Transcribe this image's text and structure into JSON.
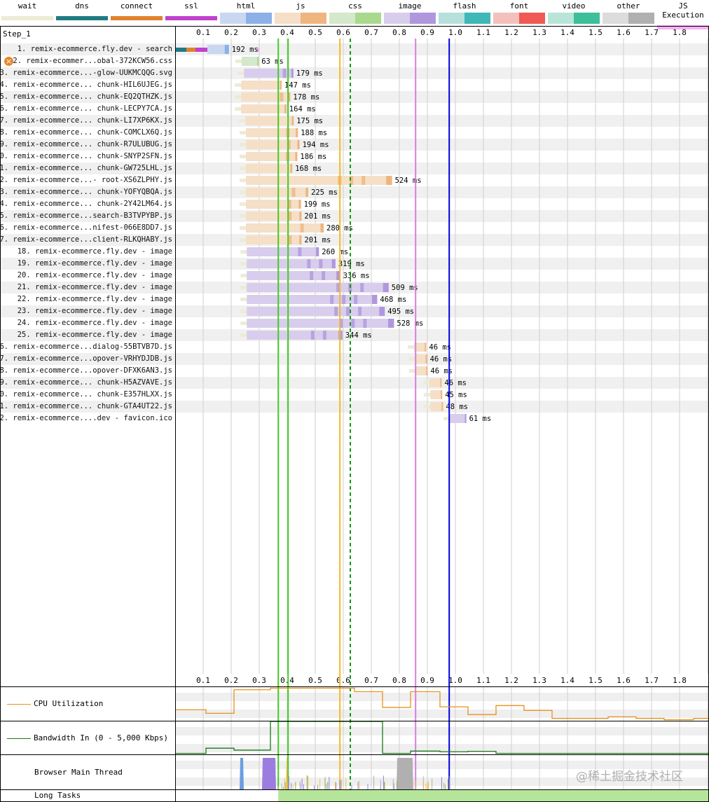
{
  "legend": [
    {
      "name": "wait",
      "colors": [
        "#ececd6"
      ]
    },
    {
      "name": "dns",
      "colors": [
        "#1f7c83"
      ]
    },
    {
      "name": "connect",
      "colors": [
        "#e0822e"
      ]
    },
    {
      "name": "ssl",
      "colors": [
        "#c141cd"
      ]
    },
    {
      "name": "html",
      "colors": [
        "#c9d8f0",
        "#8cb1e8"
      ]
    },
    {
      "name": "js",
      "colors": [
        "#f5dfc7",
        "#efb57e"
      ]
    },
    {
      "name": "css",
      "colors": [
        "#d4e8cc",
        "#a8d98d"
      ]
    },
    {
      "name": "image",
      "colors": [
        "#d8cdec",
        "#b097dd"
      ]
    },
    {
      "name": "flash",
      "colors": [
        "#b5e0dc",
        "#3fb8b7"
      ]
    },
    {
      "name": "font",
      "colors": [
        "#f3c0bd",
        "#ef5a53"
      ]
    },
    {
      "name": "video",
      "colors": [
        "#b9e5d8",
        "#3dbf9a"
      ]
    },
    {
      "name": "other",
      "colors": [
        "#dcdcdc",
        "#b0b0b0"
      ]
    },
    {
      "name": "JS Execution",
      "colors": [
        "#f8b0f4"
      ]
    }
  ],
  "step_label": "Step_1",
  "axis": {
    "ticks": [
      "0.1",
      "0.2",
      "0.3",
      "0.4",
      "0.5",
      "0.6",
      "0.7",
      "0.8",
      "0.9",
      "1.0",
      "1.1",
      "1.2",
      "1.3",
      "1.4",
      "1.5",
      "1.6",
      "1.7",
      "1.8"
    ],
    "max_seconds": 1.9
  },
  "markers": [
    {
      "t": 0.368,
      "color": "#44cc22",
      "style": "solid"
    },
    {
      "t": 0.403,
      "color": "#44cc22",
      "style": "solid"
    },
    {
      "t": 0.588,
      "color": "#f5b821",
      "style": "solid"
    },
    {
      "t": 0.625,
      "color": "#119911",
      "style": "dashed"
    },
    {
      "t": 0.858,
      "color": "#d57fdc",
      "style": "solid"
    },
    {
      "t": 0.978,
      "color": "#0000dd",
      "style": "solid"
    }
  ],
  "rows": [
    {
      "num": "1.",
      "label": "remix-ecommerce.fly.dev - search",
      "type": "html",
      "start": 0.0,
      "duration_ms": 192,
      "time": "192 ms"
    },
    {
      "num": "2.",
      "label": "remix-ecommer...obal-372KCW56.css",
      "type": "css",
      "start": 0.235,
      "duration_ms": 63,
      "time": "63 ms",
      "error": true
    },
    {
      "num": "3.",
      "label": "remix-ecommerce...-glow-UUKMCQQG.svg",
      "type": "image",
      "start": 0.243,
      "duration_ms": 179,
      "time": "179 ms"
    },
    {
      "num": "4.",
      "label": "remix-ecommerce... chunk-HIL6UJEG.js",
      "type": "js",
      "start": 0.233,
      "duration_ms": 147,
      "time": "147 ms"
    },
    {
      "num": "5.",
      "label": "remix-ecommerce... chunk-EQ2QTHZK.js",
      "type": "js",
      "start": 0.233,
      "duration_ms": 178,
      "time": "178 ms"
    },
    {
      "num": "6.",
      "label": "remix-ecommerce... chunk-LECPY7CA.js",
      "type": "js",
      "start": 0.233,
      "duration_ms": 164,
      "time": "164 ms"
    },
    {
      "num": "7.",
      "label": "remix-ecommerce... chunk-LI7XP6KX.js",
      "type": "js",
      "start": 0.248,
      "duration_ms": 175,
      "time": "175 ms"
    },
    {
      "num": "8.",
      "label": "remix-ecommerce... chunk-COMCLX6Q.js",
      "type": "js",
      "start": 0.25,
      "duration_ms": 188,
      "time": "188 ms"
    },
    {
      "num": "9.",
      "label": "remix-ecommerce... chunk-R7ULUBUG.js",
      "type": "js",
      "start": 0.25,
      "duration_ms": 194,
      "time": "194 ms"
    },
    {
      "num": "10.",
      "label": "remix-ecommerce... chunk-SNYP2SFN.js",
      "type": "js",
      "start": 0.25,
      "duration_ms": 186,
      "time": "186 ms"
    },
    {
      "num": "11.",
      "label": "remix-ecommerce... chunk-GW725LHL.js",
      "type": "js",
      "start": 0.25,
      "duration_ms": 168,
      "time": "168 ms"
    },
    {
      "num": "12.",
      "label": "remix-ecommerce...- root-XS6ZLPHY.js",
      "type": "js",
      "start": 0.25,
      "duration_ms": 524,
      "time": "524 ms"
    },
    {
      "num": "13.",
      "label": "remix-ecommerce... chunk-YOFYQBQA.js",
      "type": "js",
      "start": 0.25,
      "duration_ms": 225,
      "time": "225 ms"
    },
    {
      "num": "14.",
      "label": "remix-ecommerce... chunk-2Y42LM64.js",
      "type": "js",
      "start": 0.25,
      "duration_ms": 199,
      "time": "199 ms"
    },
    {
      "num": "15.",
      "label": "remix-ecommerce...search-B3TVPYBP.js",
      "type": "js",
      "start": 0.25,
      "duration_ms": 201,
      "time": "201 ms"
    },
    {
      "num": "16.",
      "label": "remix-ecommerce...nifest-066E8DD7.js",
      "type": "js",
      "start": 0.25,
      "duration_ms": 280,
      "time": "280 ms"
    },
    {
      "num": "17.",
      "label": "remix-ecommerce...client-RLKQHABY.js",
      "type": "js",
      "start": 0.25,
      "duration_ms": 201,
      "time": "201 ms"
    },
    {
      "num": "18.",
      "label": "remix-ecommerce.fly.dev - image",
      "type": "image",
      "start": 0.253,
      "duration_ms": 260,
      "time": "260 ms"
    },
    {
      "num": "19.",
      "label": "remix-ecommerce.fly.dev - image",
      "type": "image",
      "start": 0.253,
      "duration_ms": 319,
      "time": "319 ms"
    },
    {
      "num": "20.",
      "label": "remix-ecommerce.fly.dev - image",
      "type": "image",
      "start": 0.253,
      "duration_ms": 336,
      "time": "336 ms"
    },
    {
      "num": "21.",
      "label": "remix-ecommerce.fly.dev - image",
      "type": "image",
      "start": 0.253,
      "duration_ms": 509,
      "time": "509 ms"
    },
    {
      "num": "22.",
      "label": "remix-ecommerce.fly.dev - image",
      "type": "image",
      "start": 0.253,
      "duration_ms": 468,
      "time": "468 ms"
    },
    {
      "num": "23.",
      "label": "remix-ecommerce.fly.dev - image",
      "type": "image",
      "start": 0.253,
      "duration_ms": 495,
      "time": "495 ms"
    },
    {
      "num": "24.",
      "label": "remix-ecommerce.fly.dev - image",
      "type": "image",
      "start": 0.253,
      "duration_ms": 528,
      "time": "528 ms"
    },
    {
      "num": "25.",
      "label": "remix-ecommerce.fly.dev - image",
      "type": "image",
      "start": 0.253,
      "duration_ms": 344,
      "time": "344 ms"
    },
    {
      "num": "26.",
      "label": "remix-ecommerce...dialog-55BTVB7D.js",
      "type": "js",
      "start": 0.85,
      "duration_ms": 46,
      "time": "46 ms"
    },
    {
      "num": "27.",
      "label": "remix-ecommerce...opover-VRHYDJDB.js",
      "type": "js",
      "start": 0.853,
      "duration_ms": 46,
      "time": "46 ms"
    },
    {
      "num": "28.",
      "label": "remix-ecommerce...opover-DFXK6AN3.js",
      "type": "js",
      "start": 0.855,
      "duration_ms": 46,
      "time": "46 ms"
    },
    {
      "num": "29.",
      "label": "remix-ecommerce... chunk-H5AZVAVE.js",
      "type": "js",
      "start": 0.905,
      "duration_ms": 46,
      "time": "46 ms"
    },
    {
      "num": "30.",
      "label": "remix-ecommerce... chunk-E357HLXX.js",
      "type": "js",
      "start": 0.908,
      "duration_ms": 45,
      "time": "45 ms"
    },
    {
      "num": "31.",
      "label": "remix-ecommerce... chunk-GTA4UT22.js",
      "type": "js",
      "start": 0.908,
      "duration_ms": 48,
      "time": "48 ms"
    },
    {
      "num": "32.",
      "label": "remix-ecommerce....dev - favicon.ico",
      "type": "other_image",
      "start": 0.978,
      "duration_ms": 61,
      "time": "61 ms"
    }
  ],
  "panels": {
    "cpu": {
      "label": "CPU Utilization",
      "color": "#e8921e",
      "steps": [
        [
          0,
          32
        ],
        [
          0.11,
          21
        ],
        [
          0.21,
          94
        ],
        [
          0.34,
          99
        ],
        [
          0.64,
          88
        ],
        [
          0.74,
          39
        ],
        [
          0.84,
          88
        ],
        [
          0.945,
          41
        ],
        [
          1.045,
          17
        ],
        [
          1.145,
          45
        ],
        [
          1.245,
          30
        ],
        [
          1.345,
          5
        ],
        [
          1.545,
          10
        ],
        [
          1.645,
          5
        ],
        [
          1.745,
          1
        ],
        [
          1.85,
          5
        ]
      ]
    },
    "bandwidth": {
      "label": "Bandwidth In (0 - 5,000 Kbps)",
      "color": "#1a7a1a",
      "max_kbps": 5000,
      "steps": [
        [
          0,
          50
        ],
        [
          0.11,
          850
        ],
        [
          0.21,
          550
        ],
        [
          0.34,
          5000
        ],
        [
          0.74,
          50
        ],
        [
          0.84,
          400
        ],
        [
          0.945,
          300
        ],
        [
          1.045,
          370
        ],
        [
          1.145,
          50
        ]
      ]
    },
    "main_thread": {
      "label": "Browser Main Thread",
      "blocks": [
        [
          0.23,
          0.245,
          "#6a9fe0"
        ],
        [
          0.31,
          0.36,
          "#9b7de0"
        ],
        [
          0.395,
          0.402,
          "#f3c050"
        ],
        [
          0.79,
          0.85,
          "#b0b0b0"
        ],
        [
          0.585,
          0.59,
          "#f3c050"
        ]
      ]
    },
    "long_tasks": {
      "label": "Long Tasks",
      "start": 0.368,
      "color": "#b5e59a"
    }
  },
  "watermark": "@稀土掘金技术社区"
}
